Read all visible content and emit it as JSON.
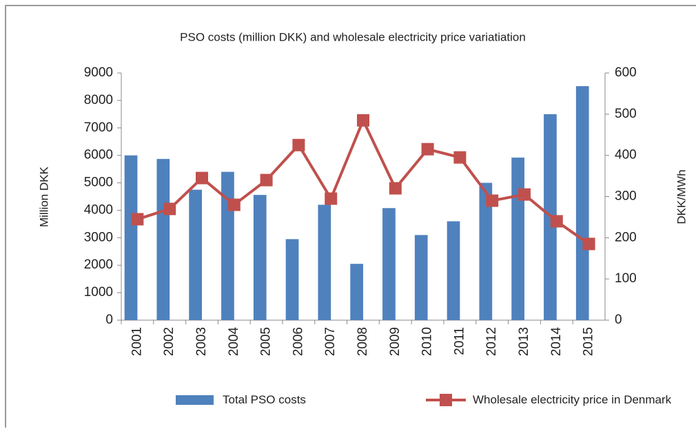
{
  "chart_data": {
    "type": "bar_line",
    "title": "PSO costs (million DKK) and wholesale electricity price variatiation",
    "y_label": "Million DKK",
    "y2_label": "DKK/MWh",
    "categories": [
      "2001",
      "2002",
      "2003",
      "2004",
      "2005",
      "2006",
      "2007",
      "2008",
      "2009",
      "2010",
      "2011",
      "2012",
      "2013",
      "2014",
      "2015"
    ],
    "series": [
      {
        "name": "Total PSO costs",
        "type": "bar",
        "color": "#4f81bd",
        "values": [
          6000,
          5870,
          4750,
          5400,
          4560,
          2950,
          4200,
          2050,
          4080,
          3100,
          3600,
          5000,
          5920,
          7500,
          8520
        ]
      },
      {
        "name": "Wholesale electricity price in Denmark",
        "type": "line",
        "axis": "y2",
        "color": "#c0504d",
        "values": [
          245,
          270,
          345,
          280,
          340,
          425,
          295,
          485,
          320,
          415,
          395,
          290,
          305,
          240,
          185
        ]
      }
    ],
    "ylim": [
      0,
      9000
    ],
    "yticks": [
      0,
      1000,
      2000,
      3000,
      4000,
      5000,
      6000,
      7000,
      8000,
      9000
    ],
    "y2lim": [
      0,
      600
    ],
    "y2ticks": [
      0,
      100,
      200,
      300,
      400,
      500,
      600
    ],
    "legend": "bottom"
  }
}
